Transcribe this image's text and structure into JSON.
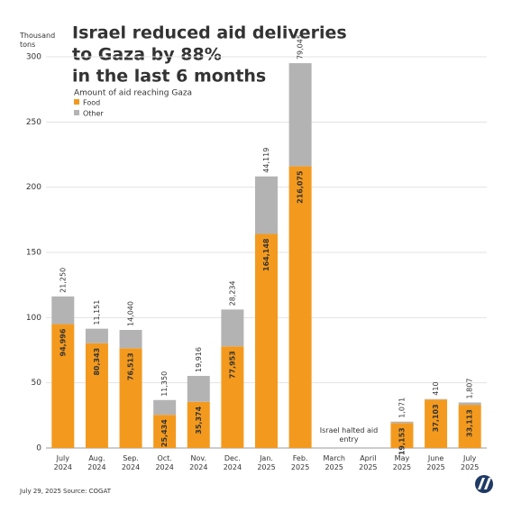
{
  "chart_data": {
    "type": "stacked-bar",
    "title": [
      "Israel reduced aid deliveries",
      "to Gaza by 88%",
      "in the last 6 months"
    ],
    "y_label": "Thousand tons",
    "legend_title": "Amount of aid reaching Gaza",
    "categories": [
      "July 2024",
      "Aug. 2024",
      "Sep. 2024",
      "Oct. 2024",
      "Nov. 2024",
      "Dec. 2024",
      "Jan. 2025",
      "Feb. 2025",
      "March 2025",
      "April 2025",
      "May 2025",
      "June 2025",
      "July 2025"
    ],
    "series": [
      {
        "name": "Food",
        "color": "#f39a1e",
        "values": [
          94.996,
          80.343,
          76.513,
          25.434,
          35.374,
          77.953,
          164.148,
          216.075,
          null,
          null,
          19.153,
          37.103,
          33.113
        ],
        "value_labels": [
          "94,996",
          "80,343",
          "76,513",
          "25,434",
          "35,374",
          "77,953",
          "164,148",
          "216,075",
          null,
          null,
          "19,153",
          "37,103",
          "33,113"
        ]
      },
      {
        "name": "Other",
        "color": "#b3b3b3",
        "values": [
          21.25,
          11.151,
          14.04,
          11.35,
          19.916,
          28.234,
          44.119,
          79.045,
          null,
          null,
          1.071,
          0.41,
          1.807
        ],
        "value_labels": [
          "21,250",
          "11,151",
          "14,040",
          "11,350",
          "19,916",
          "28,234",
          "44,119",
          "79,045",
          null,
          null,
          "1,071",
          "410",
          "1,807"
        ]
      }
    ],
    "ylim": [
      0,
      300
    ],
    "yticks": [
      0,
      50,
      100,
      150,
      200,
      250,
      300
    ],
    "grid": true,
    "annotation": "Israel halted aid entry",
    "footer": {
      "date": "July 29, 2025",
      "source": "Source: COGAT"
    }
  }
}
